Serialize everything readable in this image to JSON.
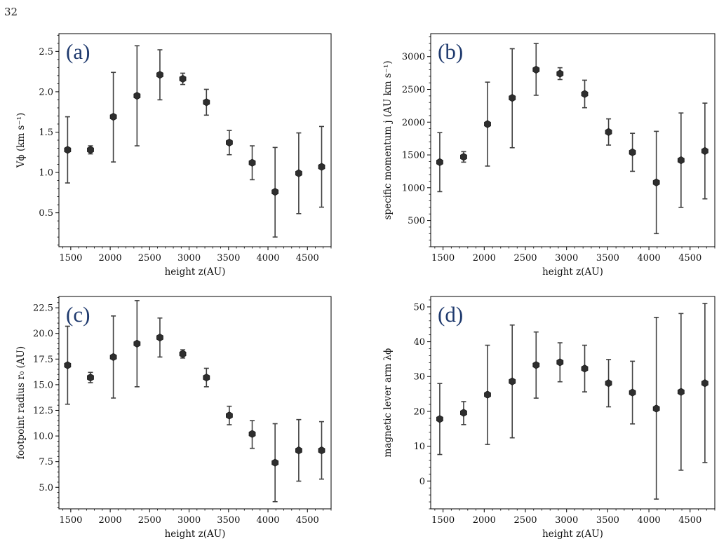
{
  "page_number": "32",
  "chart_data": [
    {
      "type": "scatter",
      "panel_label": "(a)",
      "xlabel": "height z(AU)",
      "ylabel": "Vϕ (km s⁻¹)",
      "xlim": [
        1350,
        4800
      ],
      "ylim": [
        0.08,
        2.72
      ],
      "xticks": [
        1500,
        2000,
        2500,
        3000,
        3500,
        4000,
        4500
      ],
      "yticks": [
        0.5,
        1.0,
        1.5,
        2.0,
        2.5
      ],
      "ytick_labels": [
        "0.5",
        "1.0",
        "1.5",
        "2.0",
        "2.5"
      ],
      "x": [
        1460,
        1750,
        2040,
        2340,
        2630,
        2920,
        3220,
        3510,
        3800,
        4090,
        4390,
        4680
      ],
      "y": [
        1.28,
        1.28,
        1.69,
        1.95,
        2.21,
        2.16,
        1.87,
        1.37,
        1.12,
        0.76,
        0.99,
        1.07
      ],
      "yerr_low": [
        0.41,
        0.05,
        0.56,
        0.62,
        0.31,
        0.07,
        0.16,
        0.15,
        0.21,
        0.56,
        0.5,
        0.5
      ],
      "yerr_high": [
        0.41,
        0.05,
        0.55,
        0.62,
        0.31,
        0.07,
        0.16,
        0.15,
        0.21,
        0.55,
        0.5,
        0.5
      ]
    },
    {
      "type": "scatter",
      "panel_label": "(b)",
      "xlabel": "height z(AU)",
      "ylabel": "specific momentum j (AU km s⁻¹)",
      "xlim": [
        1350,
        4800
      ],
      "ylim": [
        100,
        3350
      ],
      "xticks": [
        1500,
        2000,
        2500,
        3000,
        3500,
        4000,
        4500
      ],
      "yticks": [
        500,
        1000,
        1500,
        2000,
        2500,
        3000
      ],
      "ytick_labels": [
        "500",
        "1000",
        "1500",
        "2000",
        "2500",
        "3000"
      ],
      "x": [
        1460,
        1750,
        2040,
        2340,
        2630,
        2920,
        3220,
        3510,
        3800,
        4090,
        4390,
        4680
      ],
      "y": [
        1390,
        1470,
        1970,
        2370,
        2800,
        2740,
        2430,
        1850,
        1540,
        1080,
        1420,
        1560
      ],
      "yerr_low": [
        450,
        80,
        640,
        760,
        390,
        90,
        210,
        200,
        290,
        780,
        720,
        730
      ],
      "yerr_high": [
        450,
        80,
        640,
        750,
        400,
        90,
        210,
        200,
        290,
        780,
        720,
        730
      ]
    },
    {
      "type": "scatter",
      "panel_label": "(c)",
      "xlabel": "height z(AU)",
      "ylabel": "footpoint radius r₀ (AU)",
      "xlim": [
        1350,
        4800
      ],
      "ylim": [
        2.9,
        23.6
      ],
      "xticks": [
        1500,
        2000,
        2500,
        3000,
        3500,
        4000,
        4500
      ],
      "yticks": [
        5.0,
        7.5,
        10.0,
        12.5,
        15.0,
        17.5,
        20.0,
        22.5
      ],
      "ytick_labels": [
        "5.0",
        "7.5",
        "10.0",
        "12.5",
        "15.0",
        "17.5",
        "20.0",
        "22.5"
      ],
      "x": [
        1460,
        1750,
        2040,
        2340,
        2630,
        2920,
        3220,
        3510,
        3800,
        4090,
        4390,
        4680
      ],
      "y": [
        16.9,
        15.7,
        17.7,
        19.0,
        19.6,
        18.0,
        15.7,
        12.0,
        10.2,
        7.4,
        8.6,
        8.6
      ],
      "yerr_low": [
        3.8,
        0.5,
        4.0,
        4.2,
        1.9,
        0.4,
        0.9,
        0.9,
        1.4,
        3.8,
        3.0,
        2.8
      ],
      "yerr_high": [
        3.8,
        0.5,
        4.0,
        4.2,
        1.9,
        0.4,
        0.9,
        0.9,
        1.3,
        3.8,
        3.0,
        2.8
      ]
    },
    {
      "type": "scatter",
      "panel_label": "(d)",
      "xlabel": "height z(AU)",
      "ylabel": "magnetic lever arm λϕ",
      "xlim": [
        1350,
        4800
      ],
      "ylim": [
        -8,
        53
      ],
      "xticks": [
        1500,
        2000,
        2500,
        3000,
        3500,
        4000,
        4500
      ],
      "yticks": [
        0,
        10,
        20,
        30,
        40,
        50
      ],
      "ytick_labels": [
        "0",
        "10",
        "20",
        "30",
        "40",
        "50"
      ],
      "x": [
        1460,
        1750,
        2040,
        2340,
        2630,
        2920,
        3220,
        3510,
        3800,
        4090,
        4390,
        4680
      ],
      "y": [
        17.8,
        19.6,
        24.8,
        28.6,
        33.3,
        34.1,
        32.3,
        28.1,
        25.4,
        20.8,
        25.6,
        28.1
      ],
      "yerr_low": [
        10.2,
        3.4,
        14.3,
        16.2,
        9.5,
        5.6,
        6.7,
        6.8,
        9.0,
        26.0,
        22.5,
        22.8
      ],
      "yerr_high": [
        10.2,
        3.2,
        14.2,
        16.2,
        9.5,
        5.6,
        6.7,
        6.8,
        9.0,
        26.2,
        22.5,
        22.9
      ]
    }
  ]
}
